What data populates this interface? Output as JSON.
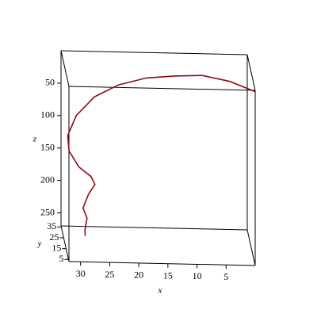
{
  "chart_data": {
    "type": "line3d",
    "x_label": "x",
    "y_label": "y",
    "z_label": "z",
    "color": "#8b0a1a",
    "x": [
      0,
      4.0,
      8.4,
      13.0,
      17.7,
      22.4,
      26.5,
      29.7,
      31.3,
      31.2,
      29.6,
      27.6,
      27.0,
      28.2,
      29.2,
      28.6,
      29.0,
      29.0
    ],
    "y": [
      3,
      12,
      20,
      25,
      28,
      30,
      30,
      28,
      25,
      22,
      20,
      18,
      16,
      14,
      12,
      10,
      9,
      8
    ],
    "z": [
      2,
      2,
      7,
      17,
      26,
      41,
      60,
      86,
      112,
      131,
      152,
      163,
      172,
      184,
      202,
      214,
      231,
      238
    ],
    "xlim": [
      0,
      32
    ],
    "ylim": [
      3,
      36
    ],
    "zlim": [
      0,
      270
    ],
    "xticks": [
      5,
      10,
      15,
      20,
      25,
      30
    ],
    "yticks": [
      5,
      15,
      25,
      35
    ],
    "zticks": [
      50,
      100,
      150,
      200,
      250
    ]
  }
}
